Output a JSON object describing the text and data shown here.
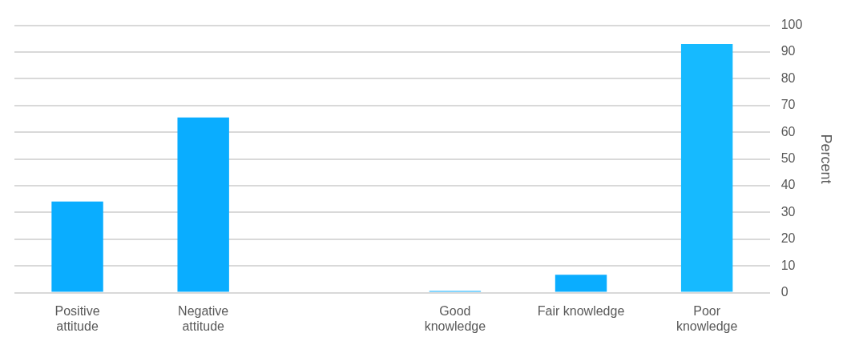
{
  "chart_data": {
    "type": "bar",
    "ylabel": "Percent",
    "categories": [
      "Positive\nattitude",
      "Negative\nattitude",
      null,
      "Good\nknowledge",
      "Fair knowledge",
      "Poor\nknowledge"
    ],
    "values": [
      34.1,
      65.5,
      null,
      0.3,
      6.7,
      93.0
    ],
    "colors": [
      "#0aadff",
      "#0aadff",
      "#0aadff",
      "#0aadff",
      "#0aadff",
      "#16baff"
    ],
    "ylim": [
      0,
      100
    ],
    "yticks": [
      0,
      10,
      20,
      30,
      40,
      50,
      60,
      70,
      80,
      90,
      100
    ],
    "grid": "y",
    "legend": false
  }
}
